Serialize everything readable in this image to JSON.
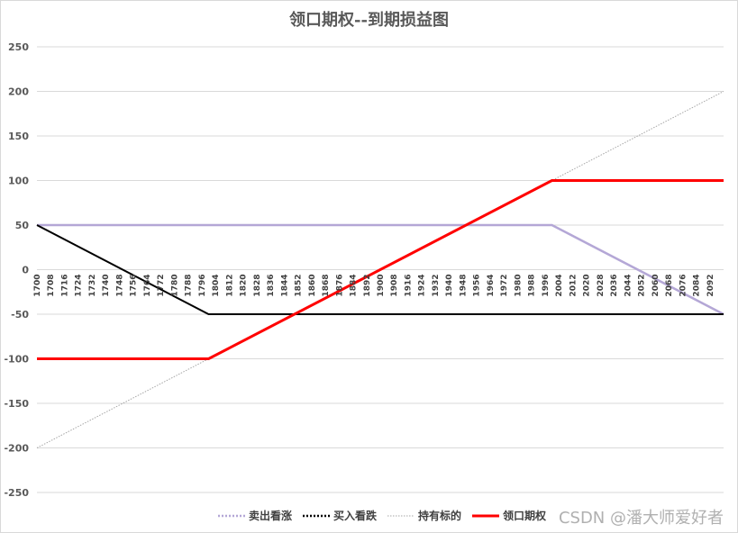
{
  "chart_data": {
    "type": "line",
    "title": "领口期权--到期损益图",
    "xlabel": "",
    "ylabel": "",
    "ylim": [
      -250,
      250
    ],
    "yticks": [
      250,
      200,
      150,
      100,
      50,
      0,
      -50,
      -100,
      -150,
      -200,
      -250
    ],
    "xlim": [
      1700,
      2100
    ],
    "xticks": [
      1700,
      1708,
      1716,
      1724,
      1732,
      1740,
      1748,
      1756,
      1764,
      1772,
      1780,
      1788,
      1796,
      1804,
      1812,
      1820,
      1828,
      1836,
      1844,
      1852,
      1860,
      1868,
      1876,
      1884,
      1892,
      1900,
      1908,
      1916,
      1924,
      1932,
      1940,
      1948,
      1956,
      1964,
      1972,
      1980,
      1988,
      1996,
      2004,
      2012,
      2020,
      2028,
      2036,
      2044,
      2052,
      2060,
      2068,
      2076,
      2084,
      2092
    ],
    "grid": true,
    "legend_position": "bottom",
    "series": [
      {
        "name": "卖出看涨",
        "color": "#b4a7d6",
        "style": "solid-light",
        "x": [
          1700,
          2000,
          2100
        ],
        "y": [
          50,
          50,
          -50
        ]
      },
      {
        "name": "买入看跌",
        "color": "#000000",
        "style": "solid",
        "x": [
          1700,
          1800,
          2100
        ],
        "y": [
          50,
          -50,
          -50
        ]
      },
      {
        "name": "持有标的",
        "color": "#a6a6a6",
        "style": "dotted",
        "x": [
          1700,
          2100
        ],
        "y": [
          -200,
          200
        ]
      },
      {
        "name": "领口期权",
        "color": "#ff0000",
        "style": "thick",
        "x": [
          1700,
          1800,
          2000,
          2100
        ],
        "y": [
          -100,
          -100,
          100,
          100
        ]
      }
    ]
  },
  "watermark": "CSDN @潘大师爱好者"
}
